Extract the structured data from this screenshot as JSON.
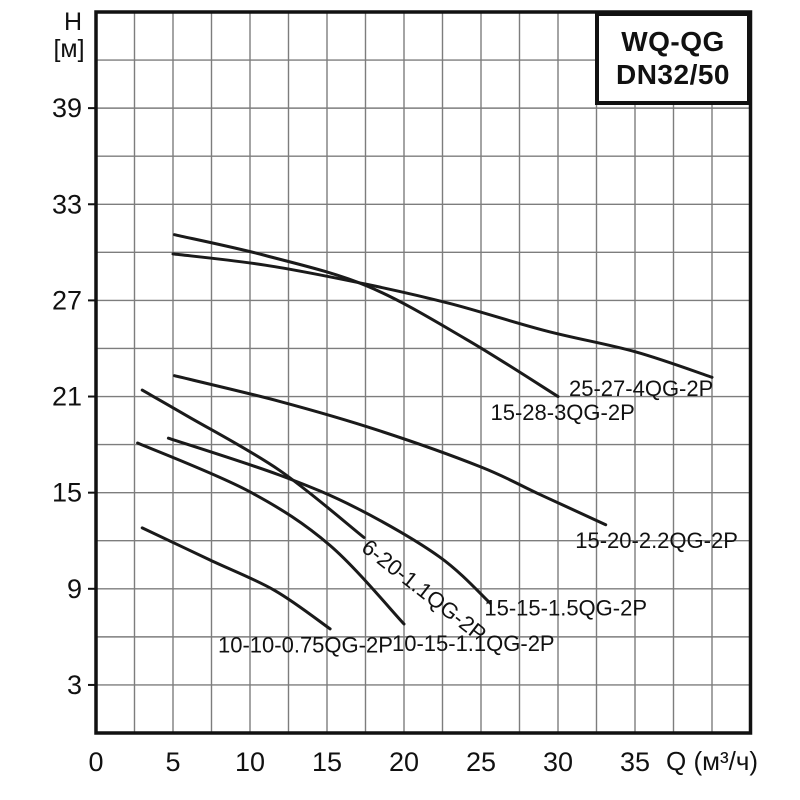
{
  "title_box": {
    "line1": "WQ-QG",
    "line2": "DN32/50"
  },
  "y_axis": {
    "name": "H",
    "unit": "[м]",
    "tick_labels": [
      39,
      33,
      27,
      21,
      15,
      9,
      3
    ]
  },
  "x_axis": {
    "name": "Q (м³/ч)",
    "tick_labels": [
      0,
      5,
      10,
      15,
      20,
      25,
      30,
      35
    ]
  },
  "colors": {
    "background": "#ffffff",
    "grid": "#7d7d7d",
    "border": "#111111",
    "curve": "#1a1a1a",
    "text": "#111111"
  },
  "chart_data": {
    "type": "line",
    "title": "WQ-QG DN32/50",
    "xlabel": "Q (м³/ч)",
    "ylabel": "H [м]",
    "xlim": [
      0,
      42.5
    ],
    "ylim": [
      0,
      45
    ],
    "x_grid_step": 2.5,
    "y_grid_step": 3,
    "grid": true,
    "legend_position": "inline-labels",
    "series": [
      {
        "name": "25-27-4QG-2P",
        "points": [
          [
            5.0,
            29.9
          ],
          [
            11.0,
            29.2
          ],
          [
            17.6,
            28.0
          ],
          [
            23.0,
            26.8
          ],
          [
            29.2,
            25.1
          ],
          [
            35.0,
            23.8
          ],
          [
            40.0,
            22.2
          ]
        ],
        "label": {
          "q": 35.4,
          "h": 21.5,
          "angle": 0
        }
      },
      {
        "name": "15-28-3QG-2P",
        "points": [
          [
            5.1,
            31.1
          ],
          [
            11.0,
            29.8
          ],
          [
            17.6,
            27.9
          ],
          [
            24.0,
            24.6
          ],
          [
            30.0,
            21.0
          ]
        ],
        "label": {
          "q": 30.3,
          "h": 20.0,
          "angle": 0
        }
      },
      {
        "name": "15-20-2.2QG-2P",
        "points": [
          [
            5.1,
            22.3
          ],
          [
            11.9,
            20.7
          ],
          [
            18.3,
            18.9
          ],
          [
            25.0,
            16.6
          ],
          [
            28.8,
            14.9
          ],
          [
            33.1,
            13.0
          ]
        ],
        "label": {
          "q": 36.4,
          "h": 12.0,
          "angle": 0
        }
      },
      {
        "name": "6-20-1.1QG-2P",
        "points": [
          [
            3.0,
            21.4
          ],
          [
            5.9,
            19.8
          ],
          [
            11.9,
            16.4
          ],
          [
            17.4,
            12.2
          ]
        ],
        "label": {
          "q": 21.3,
          "h": 8.9,
          "angle": 38
        }
      },
      {
        "name": "15-15-1.5QG-2P",
        "points": [
          [
            4.7,
            18.4
          ],
          [
            11.9,
            16.1
          ],
          [
            17.0,
            14.0
          ],
          [
            22.3,
            11.0
          ],
          [
            25.6,
            8.1
          ]
        ],
        "label": {
          "q": 30.5,
          "h": 7.8,
          "angle": 0
        }
      },
      {
        "name": "10-15-1.1QG-2P",
        "points": [
          [
            2.7,
            18.1
          ],
          [
            9.9,
            15.1
          ],
          [
            15.2,
            11.7
          ],
          [
            20.0,
            6.8
          ]
        ],
        "label": {
          "q": 24.5,
          "h": 5.6,
          "angle": 0
        }
      },
      {
        "name": "10-10-0.75QG-2P",
        "points": [
          [
            3.0,
            12.8
          ],
          [
            7.4,
            10.8
          ],
          [
            11.6,
            8.9
          ],
          [
            15.2,
            6.5
          ]
        ],
        "label": {
          "q": 13.6,
          "h": 5.5,
          "angle": 0
        }
      }
    ]
  }
}
